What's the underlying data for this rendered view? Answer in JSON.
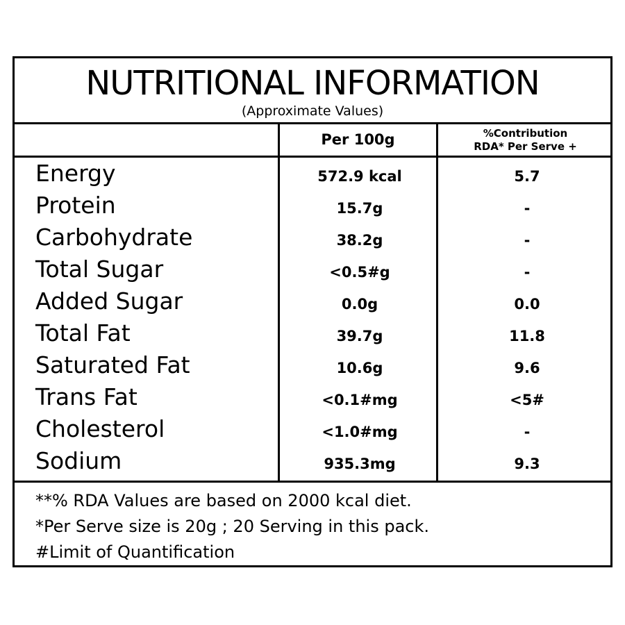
{
  "title": "NUTRITIONAL INFORMATION",
  "subtitle": "(Approximate Values)",
  "columns": {
    "per_100g": "Per 100g",
    "rda_line1": "%Contribution",
    "rda_line2": "RDA* Per Serve +"
  },
  "rows": [
    {
      "nutrient": "Energy",
      "per_100g": "572.9 kcal",
      "rda": "5.7"
    },
    {
      "nutrient": "Protein",
      "per_100g": "15.7g",
      "rda": "-"
    },
    {
      "nutrient": "Carbohydrate",
      "per_100g": "38.2g",
      "rda": "-"
    },
    {
      "nutrient": "Total Sugar",
      "per_100g": "<0.5#g",
      "rda": "-"
    },
    {
      "nutrient": "Added Sugar",
      "per_100g": "0.0g",
      "rda": "0.0"
    },
    {
      "nutrient": "Total Fat",
      "per_100g": "39.7g",
      "rda": "11.8"
    },
    {
      "nutrient": "Saturated Fat",
      "per_100g": "10.6g",
      "rda": "9.6"
    },
    {
      "nutrient": "Trans Fat",
      "per_100g": "<0.1#mg",
      "rda": "<5#"
    },
    {
      "nutrient": "Cholesterol",
      "per_100g": "<1.0#mg",
      "rda": "-"
    },
    {
      "nutrient": "Sodium",
      "per_100g": "935.3mg",
      "rda": "9.3"
    }
  ],
  "notes": [
    "**% RDA Values are based on 2000 kcal diet.",
    "*Per Serve size is 20g ; 20 Serving in this pack.",
    "#Limit of Quantification"
  ]
}
